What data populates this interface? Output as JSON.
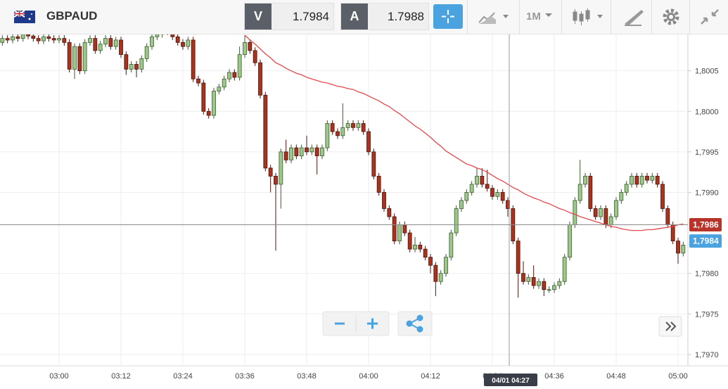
{
  "header": {
    "symbol": "GBPAUD",
    "bid_label": "V",
    "bid": 1.7984,
    "ask_label": "A",
    "ask": 1.7988,
    "timeframe": "1M"
  },
  "chart_data": {
    "type": "candlestick",
    "categories": [
      null,
      null,
      null,
      null,
      null,
      null,
      null,
      null,
      null,
      null,
      null,
      "03:00",
      null,
      null,
      null,
      null,
      null,
      null,
      null,
      null,
      null,
      null,
      null,
      "03:12",
      null,
      null,
      null,
      null,
      null,
      null,
      null,
      null,
      null,
      null,
      null,
      "03:24",
      null,
      null,
      null,
      null,
      null,
      null,
      null,
      null,
      null,
      null,
      null,
      "03:36",
      null,
      null,
      null,
      null,
      null,
      null,
      null,
      null,
      null,
      null,
      null,
      "03:48",
      null,
      null,
      null,
      null,
      null,
      null,
      null,
      null,
      null,
      null,
      null,
      "04:00",
      null,
      null,
      null,
      null,
      null,
      null,
      null,
      null,
      null,
      null,
      null,
      "04:12",
      null,
      null,
      null,
      null,
      null,
      null,
      null,
      null,
      null,
      null,
      null,
      "04:24",
      null,
      null,
      null,
      null,
      null,
      null,
      null,
      null,
      null,
      null,
      null,
      "04:36",
      null,
      null,
      null,
      null,
      null,
      null,
      null,
      null,
      null,
      null,
      null,
      "04:48",
      null,
      null,
      null,
      null,
      null,
      null,
      null,
      null,
      null,
      null,
      null,
      "05:00",
      null
    ],
    "candles": [
      [
        1.80085,
        1.80094,
        1.80081,
        1.8009
      ],
      [
        1.8009,
        1.80094,
        1.80084,
        1.80088
      ],
      [
        1.80088,
        1.80096,
        1.80084,
        1.80092
      ],
      [
        1.80092,
        1.80096,
        1.80086,
        1.8009
      ],
      [
        1.8009,
        1.80099,
        1.80086,
        1.80095
      ],
      [
        1.80095,
        1.80099,
        1.80089,
        1.80093
      ],
      [
        1.80093,
        1.80097,
        1.80086,
        1.8009
      ],
      [
        1.8009,
        1.80094,
        1.80083,
        1.80087
      ],
      [
        1.80087,
        1.80096,
        1.80083,
        1.80092
      ],
      [
        1.80092,
        1.80096,
        1.80086,
        1.8009
      ],
      [
        1.8009,
        1.80094,
        1.80084,
        1.80088
      ],
      [
        1.80088,
        1.80094,
        1.80084,
        1.8009
      ],
      [
        1.8009,
        1.80094,
        1.80081,
        1.80085
      ],
      [
        1.80085,
        1.80089,
        1.80048,
        1.80052
      ],
      [
        1.80052,
        1.80084,
        1.8004,
        1.8008
      ],
      [
        1.8008,
        1.80084,
        1.80046,
        1.8005
      ],
      [
        1.8005,
        1.80089,
        1.80046,
        1.80085
      ],
      [
        1.80085,
        1.80094,
        1.80081,
        1.8009
      ],
      [
        1.8009,
        1.80094,
        1.80071,
        1.80075
      ],
      [
        1.80075,
        1.80087,
        1.80071,
        1.80083
      ],
      [
        1.80083,
        1.80094,
        1.80079,
        1.8009
      ],
      [
        1.8009,
        1.80094,
        1.80076,
        1.8008
      ],
      [
        1.8008,
        1.80092,
        1.80076,
        1.80088
      ],
      [
        1.80088,
        1.80092,
        1.80066,
        1.8007
      ],
      [
        1.8007,
        1.80074,
        1.80045,
        1.80052
      ],
      [
        1.80052,
        1.80062,
        1.80048,
        1.80058
      ],
      [
        1.80058,
        1.80062,
        1.80042,
        1.80052
      ],
      [
        1.80052,
        1.80069,
        1.80048,
        1.80065
      ],
      [
        1.80065,
        1.80084,
        1.80061,
        1.8008
      ],
      [
        1.8008,
        1.80096,
        1.80076,
        1.80092
      ],
      [
        1.80092,
        1.80099,
        1.80088,
        1.80095
      ],
      [
        1.80095,
        1.80104,
        1.80091,
        1.801
      ],
      [
        1.801,
        1.80104,
        1.80094,
        1.80098
      ],
      [
        1.80098,
        1.80102,
        1.80088,
        1.80092
      ],
      [
        1.80092,
        1.80096,
        1.80081,
        1.80085
      ],
      [
        1.80085,
        1.80089,
        1.80076,
        1.8008
      ],
      [
        1.8008,
        1.80092,
        1.80076,
        1.80088
      ],
      [
        1.80088,
        1.80092,
        1.80036,
        1.8004
      ],
      [
        1.8004,
        1.80044,
        1.80031,
        1.80035
      ],
      [
        1.80035,
        1.80039,
        1.79996,
        1.8
      ],
      [
        1.8,
        1.80004,
        1.79991,
        1.79995
      ],
      [
        1.79995,
        1.80029,
        1.79991,
        1.80025
      ],
      [
        1.80025,
        1.80034,
        1.80021,
        1.8003
      ],
      [
        1.8003,
        1.80044,
        1.80026,
        1.8004
      ],
      [
        1.8004,
        1.80052,
        1.80036,
        1.80048
      ],
      [
        1.80048,
        1.80052,
        1.80038,
        1.80042
      ],
      [
        1.80042,
        1.8008,
        1.80038,
        1.8007
      ],
      [
        1.8007,
        1.80094,
        1.80066,
        1.80085
      ],
      [
        1.80085,
        1.80089,
        1.80071,
        1.80075
      ],
      [
        1.80075,
        1.80079,
        1.80056,
        1.8006
      ],
      [
        1.8006,
        1.80064,
        1.80016,
        1.8002
      ],
      [
        1.8002,
        1.80024,
        1.79926,
        1.7993
      ],
      [
        1.7993,
        1.79934,
        1.799,
        1.7992
      ],
      [
        1.7992,
        1.79924,
        1.79828,
        1.7991
      ],
      [
        1.7991,
        1.79954,
        1.7988,
        1.7995
      ],
      [
        1.7995,
        1.79965,
        1.79936,
        1.7994
      ],
      [
        1.7994,
        1.79959,
        1.79936,
        1.79955
      ],
      [
        1.79955,
        1.79959,
        1.79941,
        1.79945
      ],
      [
        1.79945,
        1.79959,
        1.79941,
        1.79955
      ],
      [
        1.79955,
        1.7997,
        1.79946,
        1.7995
      ],
      [
        1.7995,
        1.79959,
        1.79946,
        1.79955
      ],
      [
        1.79955,
        1.79959,
        1.79922,
        1.79945
      ],
      [
        1.79945,
        1.79959,
        1.79941,
        1.79955
      ],
      [
        1.79955,
        1.79989,
        1.79951,
        1.79985
      ],
      [
        1.79985,
        1.79989,
        1.79971,
        1.79975
      ],
      [
        1.79975,
        1.79979,
        1.79966,
        1.7997
      ],
      [
        1.7997,
        1.8001,
        1.79966,
        1.7998
      ],
      [
        1.7998,
        1.79989,
        1.79976,
        1.79985
      ],
      [
        1.79985,
        1.79989,
        1.79976,
        1.7998
      ],
      [
        1.7998,
        1.79989,
        1.79976,
        1.79985
      ],
      [
        1.79985,
        1.79989,
        1.79971,
        1.79975
      ],
      [
        1.79975,
        1.79979,
        1.79946,
        1.7995
      ],
      [
        1.7995,
        1.79954,
        1.79916,
        1.7992
      ],
      [
        1.7992,
        1.79924,
        1.79896,
        1.799
      ],
      [
        1.799,
        1.79904,
        1.79876,
        1.7988
      ],
      [
        1.7988,
        1.79884,
        1.79866,
        1.7987
      ],
      [
        1.7987,
        1.79874,
        1.79836,
        1.7984
      ],
      [
        1.7984,
        1.79864,
        1.79836,
        1.7986
      ],
      [
        1.7986,
        1.79864,
        1.79846,
        1.7985
      ],
      [
        1.7985,
        1.79854,
        1.79826,
        1.7983
      ],
      [
        1.7983,
        1.79845,
        1.79826,
        1.79835
      ],
      [
        1.79835,
        1.79839,
        1.79826,
        1.7983
      ],
      [
        1.7983,
        1.79834,
        1.79816,
        1.7982
      ],
      [
        1.7982,
        1.79824,
        1.798,
        1.7981
      ],
      [
        1.7981,
        1.79814,
        1.79772,
        1.7979
      ],
      [
        1.7979,
        1.79804,
        1.79786,
        1.798
      ],
      [
        1.798,
        1.79824,
        1.79796,
        1.7982
      ],
      [
        1.7982,
        1.79854,
        1.79816,
        1.7985
      ],
      [
        1.7985,
        1.79884,
        1.79846,
        1.7988
      ],
      [
        1.7988,
        1.79894,
        1.79876,
        1.7989
      ],
      [
        1.7989,
        1.79904,
        1.79886,
        1.799
      ],
      [
        1.799,
        1.79914,
        1.79896,
        1.7991
      ],
      [
        1.7991,
        1.7993,
        1.79906,
        1.7992
      ],
      [
        1.7992,
        1.7993,
        1.79906,
        1.7991
      ],
      [
        1.7991,
        1.79928,
        1.79901,
        1.79905
      ],
      [
        1.79905,
        1.79909,
        1.79891,
        1.79895
      ],
      [
        1.79895,
        1.79904,
        1.79891,
        1.799
      ],
      [
        1.799,
        1.79904,
        1.79886,
        1.7989
      ],
      [
        1.7989,
        1.79894,
        1.7987,
        1.7988
      ],
      [
        1.7988,
        1.79884,
        1.79836,
        1.7984
      ],
      [
        1.7984,
        1.79844,
        1.7977,
        1.798
      ],
      [
        1.798,
        1.79815,
        1.79786,
        1.7979
      ],
      [
        1.7979,
        1.79799,
        1.79786,
        1.79795
      ],
      [
        1.79795,
        1.7981,
        1.79781,
        1.79785
      ],
      [
        1.79785,
        1.79794,
        1.79781,
        1.7979
      ],
      [
        1.7979,
        1.79794,
        1.79772,
        1.7978
      ],
      [
        1.7978,
        1.79784,
        1.79776,
        1.7978
      ],
      [
        1.7978,
        1.79789,
        1.79776,
        1.79785
      ],
      [
        1.79785,
        1.79794,
        1.79781,
        1.7979
      ],
      [
        1.7979,
        1.79824,
        1.79786,
        1.7982
      ],
      [
        1.7982,
        1.79864,
        1.79816,
        1.7986
      ],
      [
        1.7986,
        1.79894,
        1.79856,
        1.7989
      ],
      [
        1.7989,
        1.7994,
        1.79886,
        1.7991
      ],
      [
        1.7991,
        1.79924,
        1.79906,
        1.7992
      ],
      [
        1.7992,
        1.79924,
        1.79876,
        1.7988
      ],
      [
        1.7988,
        1.79884,
        1.79866,
        1.7987
      ],
      [
        1.7987,
        1.79884,
        1.79866,
        1.7988
      ],
      [
        1.7988,
        1.79884,
        1.79856,
        1.7986
      ],
      [
        1.7986,
        1.79874,
        1.79856,
        1.7987
      ],
      [
        1.7987,
        1.79894,
        1.79866,
        1.7989
      ],
      [
        1.7989,
        1.79904,
        1.79886,
        1.799
      ],
      [
        1.799,
        1.79914,
        1.79896,
        1.7991
      ],
      [
        1.7991,
        1.79924,
        1.79906,
        1.7992
      ],
      [
        1.7992,
        1.79924,
        1.79906,
        1.7991
      ],
      [
        1.7991,
        1.79924,
        1.79906,
        1.7992
      ],
      [
        1.7992,
        1.79924,
        1.79911,
        1.79915
      ],
      [
        1.79915,
        1.79924,
        1.79911,
        1.7992
      ],
      [
        1.7992,
        1.79924,
        1.79906,
        1.7991
      ],
      [
        1.7991,
        1.79914,
        1.79876,
        1.7988
      ],
      [
        1.7988,
        1.79884,
        1.79856,
        1.7986
      ],
      [
        1.7986,
        1.79864,
        1.79836,
        1.7984
      ],
      [
        1.7984,
        1.79844,
        1.79812,
        1.79825
      ],
      [
        1.79825,
        1.79839,
        1.79821,
        1.79835
      ]
    ],
    "ma": [
      null,
      null,
      null,
      null,
      null,
      null,
      null,
      null,
      null,
      null,
      null,
      null,
      null,
      null,
      null,
      null,
      null,
      null,
      null,
      null,
      null,
      null,
      null,
      null,
      null,
      null,
      null,
      null,
      null,
      null,
      null,
      null,
      null,
      null,
      null,
      null,
      null,
      null,
      null,
      null,
      null,
      null,
      null,
      null,
      null,
      null,
      null,
      1.80094,
      1.80088,
      1.80083,
      1.80077,
      1.80071,
      1.80066,
      1.8006,
      1.80057,
      1.80053,
      1.8005,
      1.80047,
      1.80045,
      1.80042,
      1.8004,
      1.80038,
      1.80036,
      1.80035,
      1.80033,
      1.80031,
      1.8003,
      1.80028,
      1.80027,
      1.80024,
      1.80022,
      1.80019,
      1.80016,
      1.80013,
      1.80009,
      1.80006,
      1.80001,
      1.79997,
      1.79992,
      1.79987,
      1.79982,
      1.79978,
      1.79973,
      1.79968,
      1.79962,
      1.79957,
      1.79951,
      1.79947,
      1.79943,
      1.79939,
      1.79935,
      1.79933,
      1.7993,
      1.79928,
      1.79925,
      1.79921,
      1.79917,
      1.79914,
      1.7991,
      1.79906,
      1.79903,
      1.79899,
      1.79896,
      1.79893,
      1.79891,
      1.79888,
      1.79886,
      1.79883,
      1.7988,
      1.79878,
      1.79875,
      1.79873,
      1.7987,
      1.79868,
      1.79866,
      1.79864,
      1.79862,
      1.7986,
      1.79858,
      1.79857,
      1.79855,
      1.79854,
      1.79853,
      1.79853,
      1.79853,
      1.79854,
      1.79854,
      1.79855,
      1.79856,
      1.79857,
      1.79858,
      1.7986,
      1.79861
    ],
    "ma_color": "#e5484d",
    "up_color": "#9cc98a",
    "down_color": "#a9331f",
    "ylim": [
      1.79686,
      1.80094
    ],
    "yticks": [
      {
        "value": 1.797,
        "label": "1,7970"
      },
      {
        "value": 1.7975,
        "label": "1,7975"
      },
      {
        "value": 1.798,
        "label": "1,7980"
      },
      {
        "value": 1.799,
        "label": "1,7990"
      },
      {
        "value": 1.7995,
        "label": "1,7995"
      },
      {
        "value": 1.8,
        "label": "1,8000"
      },
      {
        "value": 1.8005,
        "label": "1,8005"
      }
    ],
    "grid": true,
    "price_markers": [
      {
        "value": 1.7986,
        "label": "1,7986",
        "color": "#b8332a"
      },
      {
        "value": 1.7984,
        "label": "1,7984",
        "color": "#4aa3df"
      }
    ],
    "crosshair_label": "04/01 04:27"
  }
}
